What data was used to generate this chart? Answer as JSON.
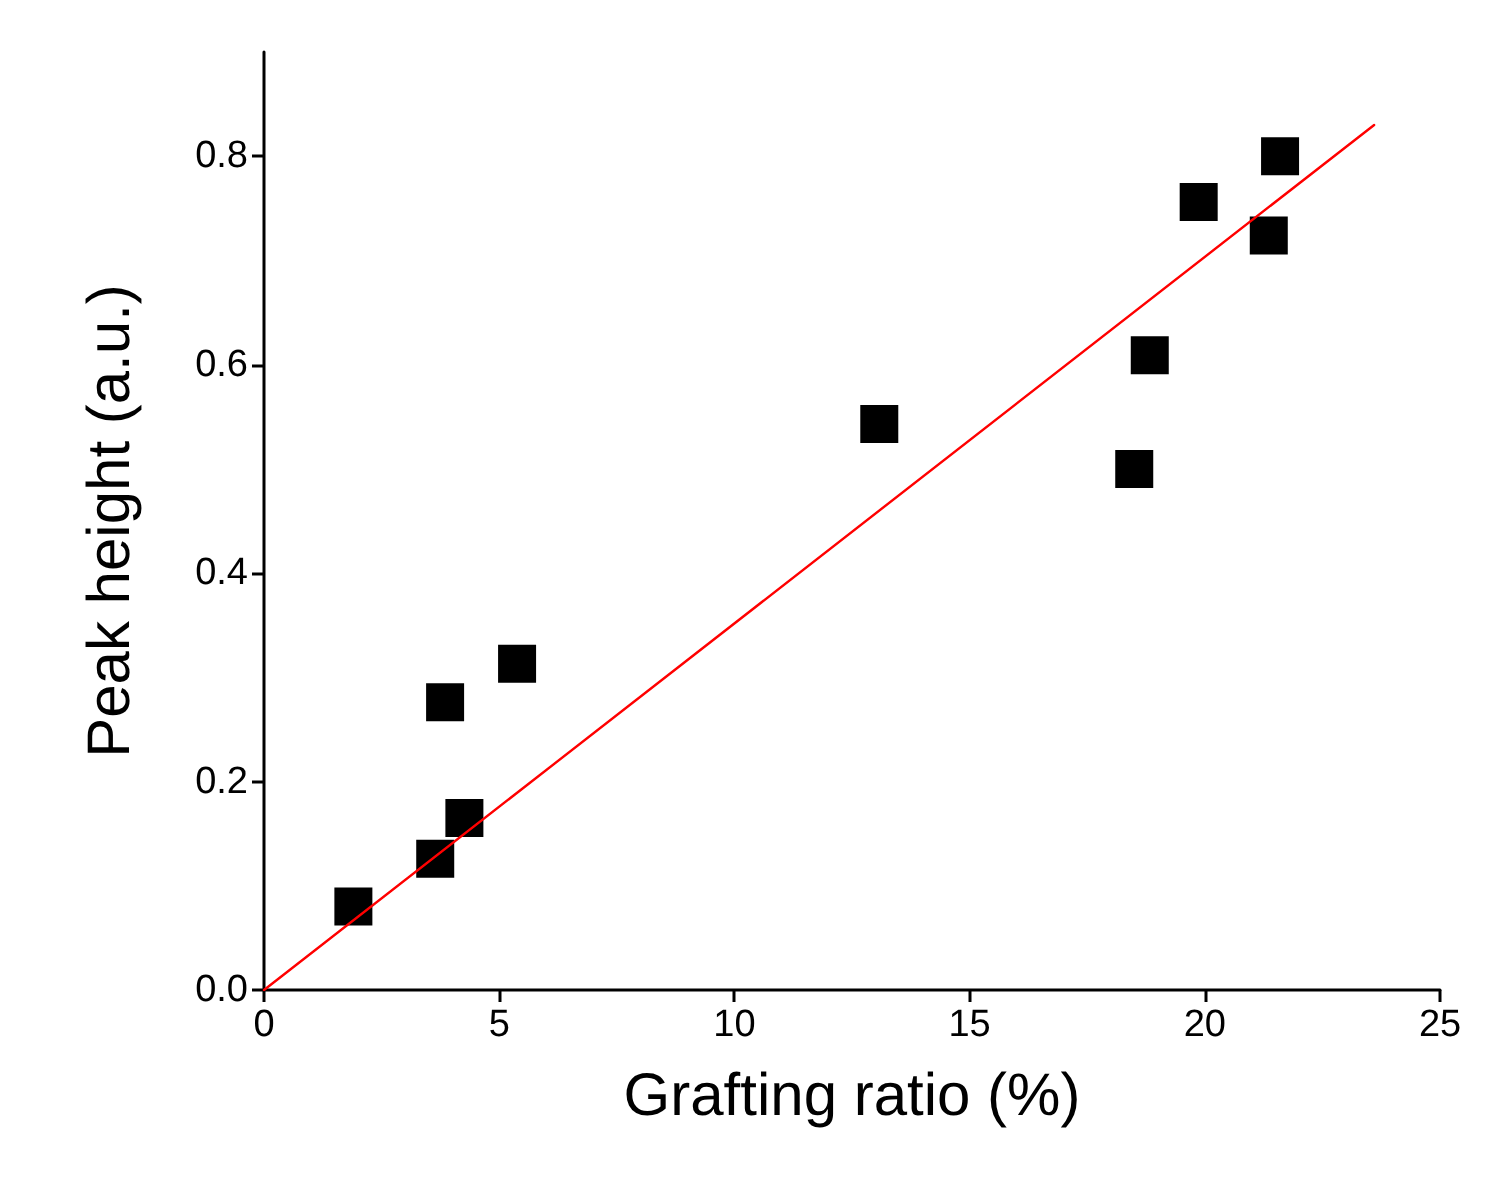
{
  "chart_data": {
    "type": "scatter",
    "xlabel": "Grafting ratio (%)",
    "ylabel": "Peak height (a.u.)",
    "xlim": [
      0,
      25
    ],
    "xticks": [
      0,
      5,
      10,
      15,
      20,
      25
    ],
    "ylim": [
      0,
      0.9
    ],
    "yticks": [
      {
        "value": 0,
        "label": "0.0"
      },
      {
        "value": 0.2,
        "label": "0.2"
      },
      {
        "value": 0.4,
        "label": "0.4"
      },
      {
        "value": 0.6,
        "label": "0.6"
      },
      {
        "value": 0.8,
        "label": "0.8"
      }
    ],
    "grid": false,
    "marker": "square",
    "series": [
      {
        "color": "#000000",
        "x": [
          1.9,
          3.64,
          3.85,
          4.26,
          5.38,
          13.08,
          18.5,
          18.83,
          19.87,
          21.36,
          21.6
        ],
        "values": [
          0.08,
          0.126,
          0.276,
          0.165,
          0.313,
          0.543,
          0.5,
          0.609,
          0.756,
          0.724,
          0.8
        ]
      },
      {
        "type": "line",
        "color": "#ff0000",
        "marker": "none",
        "line_style": "solid",
        "x": [
          0,
          23.6
        ],
        "values": [
          0,
          0.83
        ]
      }
    ]
  }
}
